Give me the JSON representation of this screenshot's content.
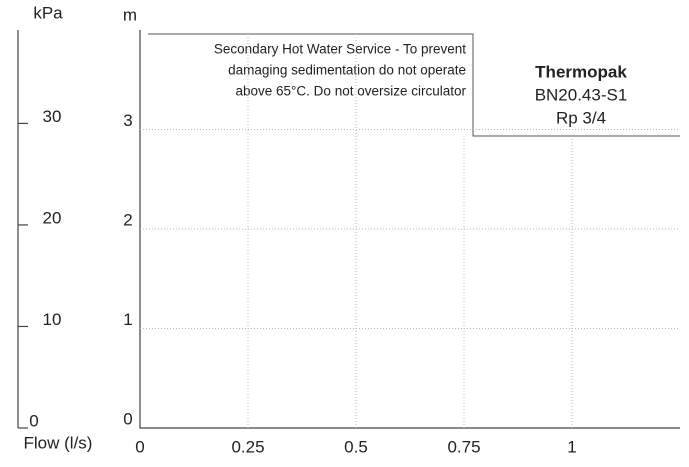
{
  "chart_data": {
    "type": "line",
    "x_label": "Flow (l/s)",
    "y_label": "m",
    "y2_label": "kPa",
    "xlim": [
      0,
      1.25
    ],
    "xticks": [
      0,
      0.25,
      0.5,
      0.75,
      1
    ],
    "ylim": [
      0,
      4
    ],
    "yticks": [
      0,
      1,
      2,
      3
    ],
    "y2lim": [
      0,
      39.2
    ],
    "y2ticks": [
      0,
      10,
      20,
      30
    ],
    "grid": true,
    "annotations": [
      "Secondary Hot Water Service - To prevent",
      "damaging sedimentation do not operate",
      "above 65°C.  Do not oversize circulator"
    ],
    "product": {
      "name": "Thermopak",
      "model": "BN20.43-S1",
      "connection": "Rp 3/4"
    }
  }
}
